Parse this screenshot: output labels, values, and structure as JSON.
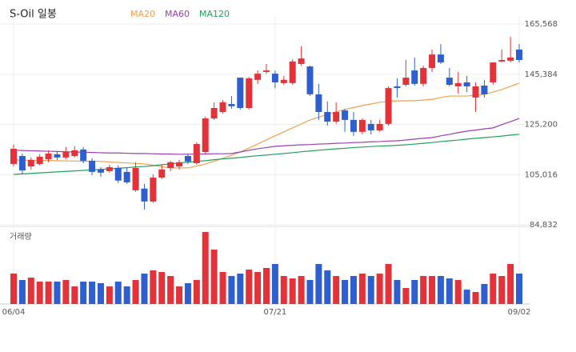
{
  "chart_data": {
    "type": "candlestick",
    "title": "S-Oil 일봉",
    "categories": [
      "06/04",
      null,
      null,
      null,
      null,
      null,
      null,
      null,
      null,
      null,
      null,
      null,
      null,
      null,
      null,
      null,
      null,
      null,
      null,
      null,
      null,
      null,
      null,
      null,
      null,
      null,
      null,
      null,
      null,
      null,
      "07/21",
      null,
      null,
      null,
      null,
      null,
      null,
      null,
      null,
      null,
      null,
      null,
      null,
      null,
      null,
      null,
      null,
      null,
      null,
      null,
      null,
      null,
      null,
      null,
      null,
      null,
      null,
      null,
      "09/02"
    ],
    "open": [
      109300,
      112500,
      108300,
      109300,
      111200,
      113200,
      111900,
      112500,
      115100,
      110600,
      107100,
      106400,
      107700,
      106100,
      98700,
      99400,
      94200,
      103800,
      107700,
      108300,
      112500,
      109600,
      114100,
      127600,
      130200,
      133400,
      144000,
      131800,
      143100,
      146300,
      145600,
      141800,
      141800,
      149500,
      148500,
      137300,
      130200,
      126300,
      130800,
      127000,
      122200,
      125400,
      122800,
      125400,
      140500,
      141100,
      146900,
      141500,
      147900,
      153300,
      144000,
      140500,
      142100,
      136000,
      140800,
      142100,
      150500,
      150800,
      155300
    ],
    "close": [
      115400,
      106700,
      110900,
      112200,
      113500,
      111900,
      114100,
      114800,
      110600,
      106100,
      105800,
      108000,
      102600,
      101900,
      107700,
      94200,
      103800,
      107100,
      110000,
      110000,
      110300,
      117300,
      127600,
      131800,
      134100,
      132500,
      131800,
      143700,
      145600,
      146900,
      142100,
      143100,
      150500,
      151700,
      137300,
      130200,
      126300,
      130200,
      127000,
      122200,
      127000,
      122800,
      125400,
      139800,
      139800,
      144000,
      141500,
      147900,
      153300,
      150100,
      141100,
      141800,
      140500,
      140500,
      137300,
      150100,
      151100,
      152100,
      151100
    ],
    "high": [
      117000,
      113500,
      111900,
      113200,
      114800,
      114100,
      116100,
      116400,
      116100,
      111600,
      108000,
      109000,
      108700,
      107700,
      110000,
      101300,
      105100,
      109000,
      110600,
      110900,
      113500,
      118000,
      128300,
      134100,
      135000,
      136600,
      144000,
      144300,
      146900,
      149500,
      146900,
      144700,
      151400,
      156600,
      148800,
      141500,
      134400,
      134100,
      131500,
      130200,
      127600,
      127000,
      127000,
      140500,
      143700,
      151100,
      152100,
      148800,
      155300,
      157500,
      147900,
      146300,
      144700,
      142100,
      143100,
      150100,
      155300,
      160400,
      157500
    ],
    "low": [
      108300,
      105100,
      107100,
      108700,
      110000,
      110900,
      111200,
      111900,
      109600,
      104800,
      104200,
      105800,
      101600,
      101300,
      98100,
      91000,
      93600,
      103200,
      106400,
      107100,
      109300,
      109000,
      113500,
      127000,
      129600,
      131500,
      131200,
      131200,
      141500,
      145600,
      139800,
      141100,
      141100,
      148800,
      136600,
      127000,
      124700,
      125400,
      122200,
      120600,
      121200,
      121200,
      122200,
      124700,
      136000,
      140500,
      140800,
      140500,
      146300,
      149500,
      140500,
      137600,
      138200,
      130200,
      136000,
      141100,
      150100,
      150100,
      150100
    ],
    "up_color": "#e2323a",
    "down_color": "#2f5fce",
    "series": [
      {
        "name": "MA20",
        "color": "#f0a050",
        "values": [
          110900,
          110800,
          110800,
          110700,
          110700,
          110600,
          110500,
          110500,
          110400,
          110400,
          110300,
          110100,
          109900,
          109700,
          109500,
          109300,
          108800,
          108200,
          107700,
          107700,
          107700,
          108500,
          109300,
          110400,
          111600,
          112800,
          114100,
          115700,
          117300,
          119000,
          120600,
          122200,
          123800,
          125400,
          127000,
          128100,
          129200,
          130200,
          131200,
          132000,
          132800,
          133400,
          134100,
          134400,
          134700,
          134700,
          134700,
          135000,
          135300,
          136000,
          136600,
          136600,
          136600,
          137000,
          137300,
          138200,
          139200,
          140500,
          141800
        ]
      },
      {
        "name": "MA60",
        "color": "#9b3fb0",
        "values": [
          114800,
          114700,
          114600,
          114500,
          114400,
          114300,
          114200,
          114100,
          114000,
          113900,
          113800,
          113700,
          113700,
          113600,
          113500,
          113500,
          113400,
          113300,
          113300,
          113200,
          113200,
          113300,
          113300,
          113400,
          113400,
          113500,
          114100,
          114800,
          115400,
          115900,
          116400,
          116600,
          116800,
          117000,
          117100,
          117300,
          117400,
          117600,
          117700,
          117900,
          118000,
          118200,
          118300,
          118500,
          118600,
          118900,
          119300,
          119600,
          119900,
          120600,
          121200,
          121900,
          122500,
          122900,
          123400,
          123800,
          125100,
          126300,
          127600
        ]
      },
      {
        "name": "MA120",
        "color": "#23a05a",
        "values": [
          105100,
          105300,
          105500,
          105700,
          105900,
          106100,
          106300,
          106500,
          106700,
          106900,
          107100,
          107300,
          107600,
          107800,
          108100,
          108300,
          108600,
          109000,
          109300,
          109700,
          110000,
          110300,
          110600,
          111000,
          111300,
          111600,
          111900,
          112300,
          112600,
          112900,
          113200,
          113500,
          113800,
          114200,
          114500,
          114800,
          115100,
          115400,
          115600,
          115900,
          116100,
          116300,
          116500,
          116600,
          116800,
          117000,
          117300,
          117600,
          117900,
          118300,
          118600,
          118900,
          119300,
          119600,
          119900,
          120200,
          120500,
          120900,
          121200
        ]
      }
    ],
    "ylim": [
      84832,
      165568
    ],
    "yticks": [
      {
        "value": 84832,
        "label": "84,832"
      },
      {
        "value": 105016,
        "label": "105,016"
      },
      {
        "value": 125200,
        "label": "125,200"
      },
      {
        "value": 145384,
        "label": "145,384"
      },
      {
        "value": 165568,
        "label": "165,568"
      }
    ],
    "grid": true,
    "volume": {
      "label": "거래량",
      "ylim": [
        0,
        90
      ],
      "values": [
        38,
        30,
        33,
        28,
        28,
        28,
        30,
        22,
        28,
        28,
        26,
        22,
        28,
        22,
        30,
        38,
        42,
        40,
        35,
        22,
        26,
        30,
        90,
        68,
        40,
        35,
        38,
        43,
        40,
        45,
        50,
        35,
        32,
        35,
        30,
        50,
        42,
        35,
        30,
        35,
        38,
        35,
        38,
        50,
        30,
        20,
        30,
        35,
        35,
        35,
        32,
        30,
        18,
        15,
        25,
        38,
        35,
        50,
        38
      ]
    }
  }
}
